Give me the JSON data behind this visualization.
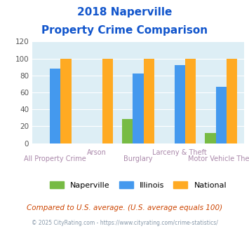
{
  "title_line1": "2018 Naperville",
  "title_line2": "Property Crime Comparison",
  "categories": [
    "All Property Crime",
    "Arson",
    "Burglary",
    "Larceny & Theft",
    "Motor Vehicle Theft"
  ],
  "naperville": [
    0,
    0,
    29,
    0,
    12
  ],
  "illinois": [
    88,
    0,
    82,
    92,
    67
  ],
  "national": [
    100,
    100,
    100,
    100,
    100
  ],
  "naperville_color": "#77bb44",
  "illinois_color": "#4499ee",
  "national_color": "#ffaa22",
  "ylim": [
    0,
    120
  ],
  "yticks": [
    0,
    20,
    40,
    60,
    80,
    100,
    120
  ],
  "plot_bg": "#ddeef5",
  "title_color": "#1155cc",
  "xlabel_color": "#aa88aa",
  "footer_text": "Compared to U.S. average. (U.S. average equals 100)",
  "copyright_text": "© 2025 CityRating.com - https://www.cityrating.com/crime-statistics/",
  "footer_color": "#cc4400",
  "copyright_color": "#8899aa"
}
